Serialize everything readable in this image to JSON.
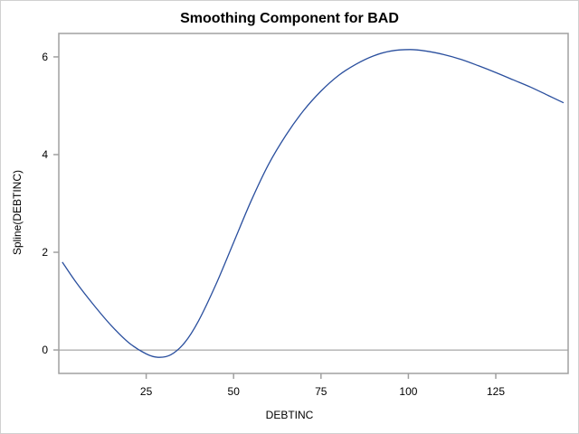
{
  "chart_data": {
    "type": "line",
    "title": "Smoothing Component for BAD",
    "xlabel": "DEBTINC",
    "ylabel": "Spline(DEBTINC)",
    "xlim": [
      0.0,
      145.7
    ],
    "ylim": [
      -0.48,
      6.48
    ],
    "xticks": [
      25,
      50,
      75,
      100,
      125
    ],
    "yticks": [
      0,
      2,
      4,
      6
    ],
    "reference_line": {
      "axis": "y",
      "value": 0
    },
    "grid": false,
    "legend": null,
    "series": [
      {
        "name": "Spline(DEBTINC)",
        "color": "#2a4f9e",
        "x": [
          1.0,
          5,
          10,
          15,
          20,
          25,
          28.4,
          32,
          36,
          40,
          45,
          50,
          55,
          60,
          65,
          70,
          75,
          80,
          85,
          90,
          95,
          100.5,
          105,
          110,
          115,
          120,
          125,
          130,
          135,
          140,
          144.4
        ],
        "y": [
          1.8,
          1.38,
          0.92,
          0.5,
          0.15,
          -0.08,
          -0.15,
          -0.1,
          0.15,
          0.6,
          1.35,
          2.2,
          3.05,
          3.8,
          4.4,
          4.9,
          5.3,
          5.62,
          5.85,
          6.02,
          6.12,
          6.15,
          6.12,
          6.05,
          5.95,
          5.82,
          5.68,
          5.53,
          5.38,
          5.21,
          5.06
        ]
      }
    ]
  },
  "title": "Smoothing Component for BAD",
  "axes": {
    "x_label": "DEBTINC",
    "y_label": "Spline(DEBTINC)",
    "x_tick_labels": [
      "25",
      "50",
      "75",
      "100",
      "125"
    ],
    "y_tick_labels": [
      "0",
      "2",
      "4",
      "6"
    ]
  }
}
